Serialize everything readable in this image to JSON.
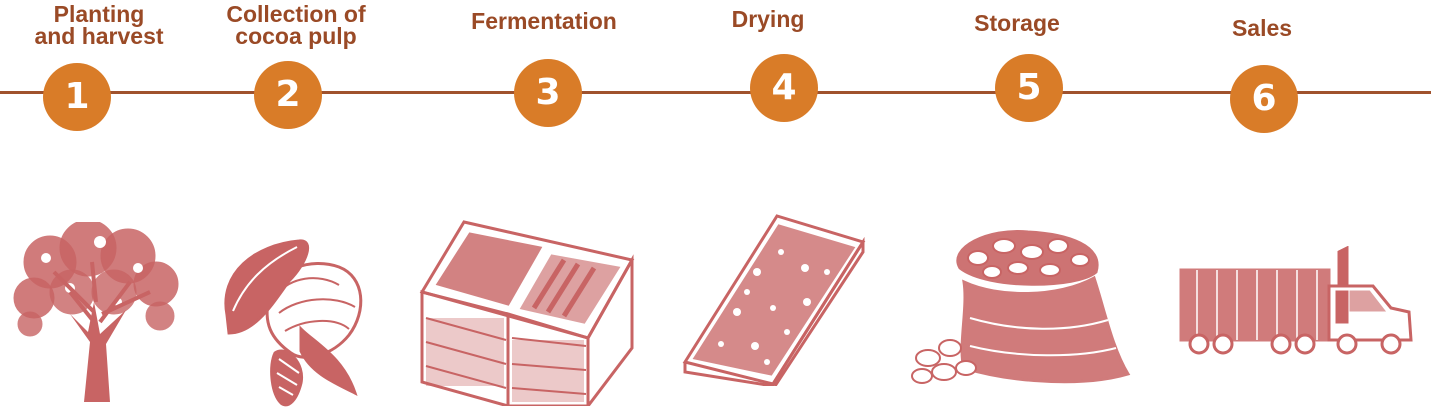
{
  "colors": {
    "accent": "#d97c28",
    "line": "#a0522d",
    "title": "#9a4a26",
    "illustration": "#c86464"
  },
  "steps": [
    {
      "number": "1",
      "title": "Planting\nand harvest",
      "icon": "cocoa-tree-icon"
    },
    {
      "number": "2",
      "title": "Collection of\ncocoa pulp",
      "icon": "cocoa-pod-icon"
    },
    {
      "number": "3",
      "title": "Fermentation",
      "icon": "fermentation-box-icon"
    },
    {
      "number": "4",
      "title": "Drying",
      "icon": "drying-tray-icon"
    },
    {
      "number": "5",
      "title": "Storage",
      "icon": "bean-sack-icon"
    },
    {
      "number": "6",
      "title": "Sales",
      "icon": "delivery-truck-icon"
    }
  ]
}
